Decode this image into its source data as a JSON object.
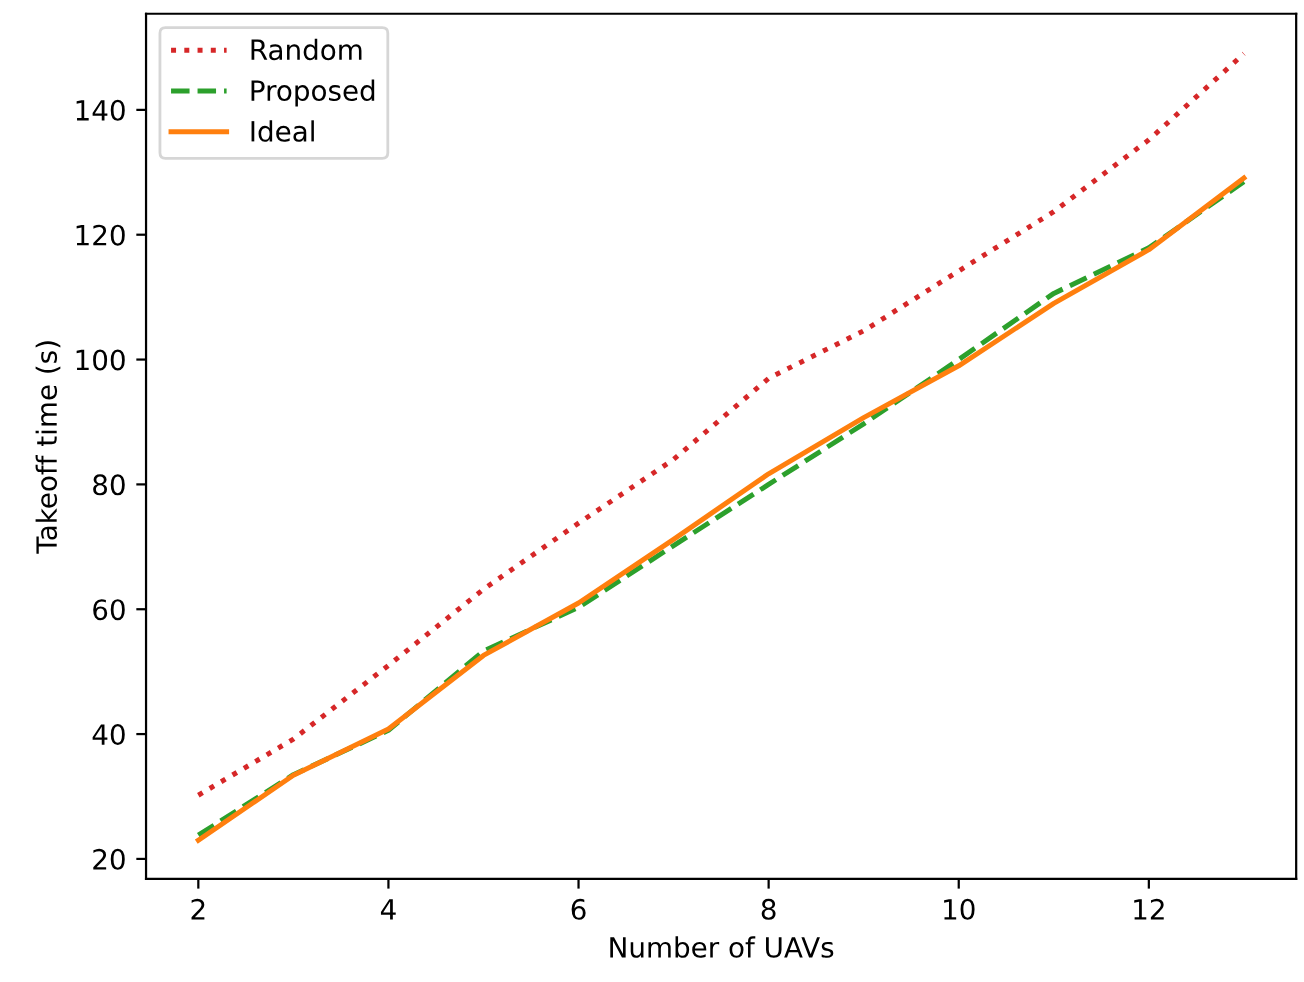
{
  "chart_data": {
    "type": "line",
    "xlabel": "Number of UAVs",
    "ylabel": "Takeoff time (s)",
    "x": [
      2,
      3,
      4,
      5,
      6,
      7,
      8,
      9,
      10,
      11,
      12,
      13
    ],
    "series": [
      {
        "name": "Random",
        "color": "#d62728",
        "line_style": "dotted",
        "values": [
          30.2,
          39.2,
          51,
          63.2,
          73.8,
          84,
          97,
          104.6,
          114.2,
          123.7,
          135.2,
          149
        ]
      },
      {
        "name": "Proposed",
        "color": "#2ca02c",
        "line_style": "dashed",
        "values": [
          23.8,
          33.5,
          40.6,
          53.3,
          60.3,
          70.2,
          80,
          89.7,
          100,
          110.6,
          117.9,
          128.5
        ]
      },
      {
        "name": "Ideal",
        "color": "#ff7f0e",
        "line_style": "solid",
        "values": [
          23,
          33.4,
          40.8,
          52.6,
          61,
          71.2,
          81.7,
          90.7,
          99,
          109,
          117.6,
          129.1
        ]
      }
    ],
    "xlim": [
      1.45,
      13.55
    ],
    "ylim": [
      16.8,
      155.4
    ],
    "xticks": [
      2,
      4,
      6,
      8,
      10,
      12
    ],
    "yticks": [
      20,
      40,
      60,
      80,
      100,
      120,
      140
    ],
    "legend": "top left",
    "grid": false,
    "marker": "none"
  }
}
